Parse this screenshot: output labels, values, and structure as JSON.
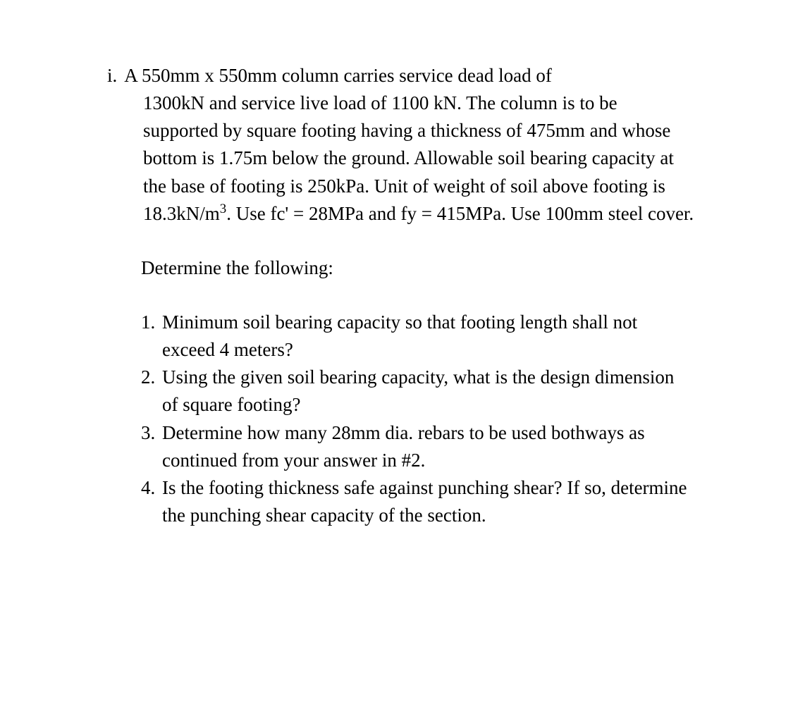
{
  "problem": {
    "marker": "i.",
    "firstLine": "A 550mm x 550mm column carries service dead load of",
    "body": "1300kN and service live load of 1100 kN. The column is to be supported by square footing having a thickness of 475mm and whose bottom is 1.75m below the ground. Allowable soil bearing capacity at the base of footing is 250kPa. Unit of weight of soil above footing is 18.3kN/m³. Use fc' = 28MPa and fy = 415MPa. Use 100mm steel cover."
  },
  "sectionHeading": "Determine the following:",
  "questions": [
    {
      "number": "1.",
      "text": "Minimum soil bearing capacity so that footing length shall not exceed 4 meters?"
    },
    {
      "number": "2.",
      "text": "Using the given soil bearing capacity, what is the design dimension of square footing?"
    },
    {
      "number": "3.",
      "text": "Determine how many 28mm dia. rebars to be used bothways as continued from your answer in #2."
    },
    {
      "number": "4.",
      "text": "Is the footing thickness safe against punching shear? If so, determine the punching shear capacity of the section."
    }
  ],
  "styling": {
    "backgroundColor": "#ffffff",
    "textColor": "#000000",
    "fontFamily": "Times New Roman",
    "fontSize": 27,
    "lineHeight": 1.45,
    "pageWidth": 1125,
    "pageHeight": 1026
  }
}
